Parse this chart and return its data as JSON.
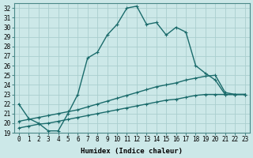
{
  "xlabel": "Humidex (Indice chaleur)",
  "background_color": "#cce8e8",
  "grid_color": "#aacece",
  "line_color": "#1a6b6b",
  "xlim": [
    -0.5,
    23.5
  ],
  "ylim": [
    19,
    32.5
  ],
  "xticks": [
    0,
    1,
    2,
    3,
    4,
    5,
    6,
    7,
    8,
    9,
    10,
    11,
    12,
    13,
    14,
    15,
    16,
    17,
    18,
    19,
    20,
    21,
    22,
    23
  ],
  "yticks": [
    19,
    20,
    21,
    22,
    23,
    24,
    25,
    26,
    27,
    28,
    29,
    30,
    31,
    32
  ],
  "curve1_x": [
    0,
    1,
    2,
    3,
    4,
    5,
    6,
    7,
    8,
    9,
    10,
    11,
    12,
    13,
    14,
    15,
    16,
    17,
    18,
    19,
    20,
    21,
    22,
    23
  ],
  "curve1_y": [
    22.0,
    20.5,
    20.0,
    19.2,
    19.2,
    21.0,
    23.0,
    26.8,
    27.4,
    29.2,
    30.3,
    32.0,
    32.2,
    30.3,
    30.5,
    29.2,
    30.0,
    29.5,
    26.0,
    25.2,
    24.5,
    23.0,
    23.0,
    23.0
  ],
  "curve2_x": [
    0,
    1,
    2,
    3,
    4,
    5,
    6,
    7,
    8,
    9,
    10,
    11,
    12,
    13,
    14,
    15,
    16,
    17,
    18,
    19,
    20,
    21,
    22,
    23
  ],
  "curve2_y": [
    20.2,
    20.4,
    20.6,
    20.8,
    21.0,
    21.2,
    21.4,
    21.7,
    22.0,
    22.3,
    22.6,
    22.9,
    23.2,
    23.5,
    23.8,
    24.0,
    24.2,
    24.5,
    24.7,
    24.9,
    25.0,
    23.2,
    23.0,
    23.0
  ],
  "curve3_x": [
    0,
    1,
    2,
    3,
    4,
    5,
    6,
    7,
    8,
    9,
    10,
    11,
    12,
    13,
    14,
    15,
    16,
    17,
    18,
    19,
    20,
    21,
    22,
    23
  ],
  "curve3_y": [
    19.5,
    19.7,
    19.9,
    20.0,
    20.2,
    20.4,
    20.6,
    20.8,
    21.0,
    21.2,
    21.4,
    21.6,
    21.8,
    22.0,
    22.2,
    22.4,
    22.5,
    22.7,
    22.9,
    23.0,
    23.0,
    23.0,
    23.0,
    23.0
  ],
  "markersize": 2.5,
  "linewidth": 1.0,
  "label_fontsize": 6.5,
  "tick_fontsize": 5.5
}
